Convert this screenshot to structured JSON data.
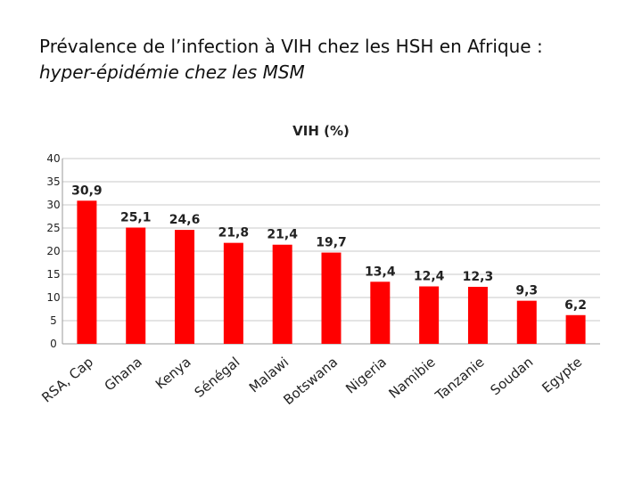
{
  "slide": {
    "title_line1": "Prévalence de l’infection à VIH chez les HSH en Afrique :",
    "title_line2": "hyper-épidémie chez les  MSM"
  },
  "chart_data": {
    "type": "bar",
    "title": "VIH (%)",
    "categories": [
      "RSA, Cap",
      "Ghana",
      "Kenya",
      "Sénégal",
      "Malawi",
      "Botswana",
      "Nigeria",
      "Namibie",
      "Tanzanie",
      "Soudan",
      "Egypte"
    ],
    "values": [
      30.9,
      25.1,
      24.6,
      21.8,
      21.4,
      19.7,
      13.4,
      12.4,
      12.3,
      9.3,
      6.2
    ],
    "data_labels": [
      "30,9",
      "25,1",
      "24,6",
      "21,8",
      "21,4",
      "19,7",
      "13,4",
      "12,4",
      "12,3",
      "9,3",
      "6,2"
    ],
    "ylim": [
      0,
      40
    ],
    "yticks": [
      0,
      5,
      10,
      15,
      20,
      25,
      30,
      35,
      40
    ],
    "grid": true,
    "xlabel": "",
    "ylabel": "",
    "legend": "none",
    "bar_color": "#ff0000"
  }
}
